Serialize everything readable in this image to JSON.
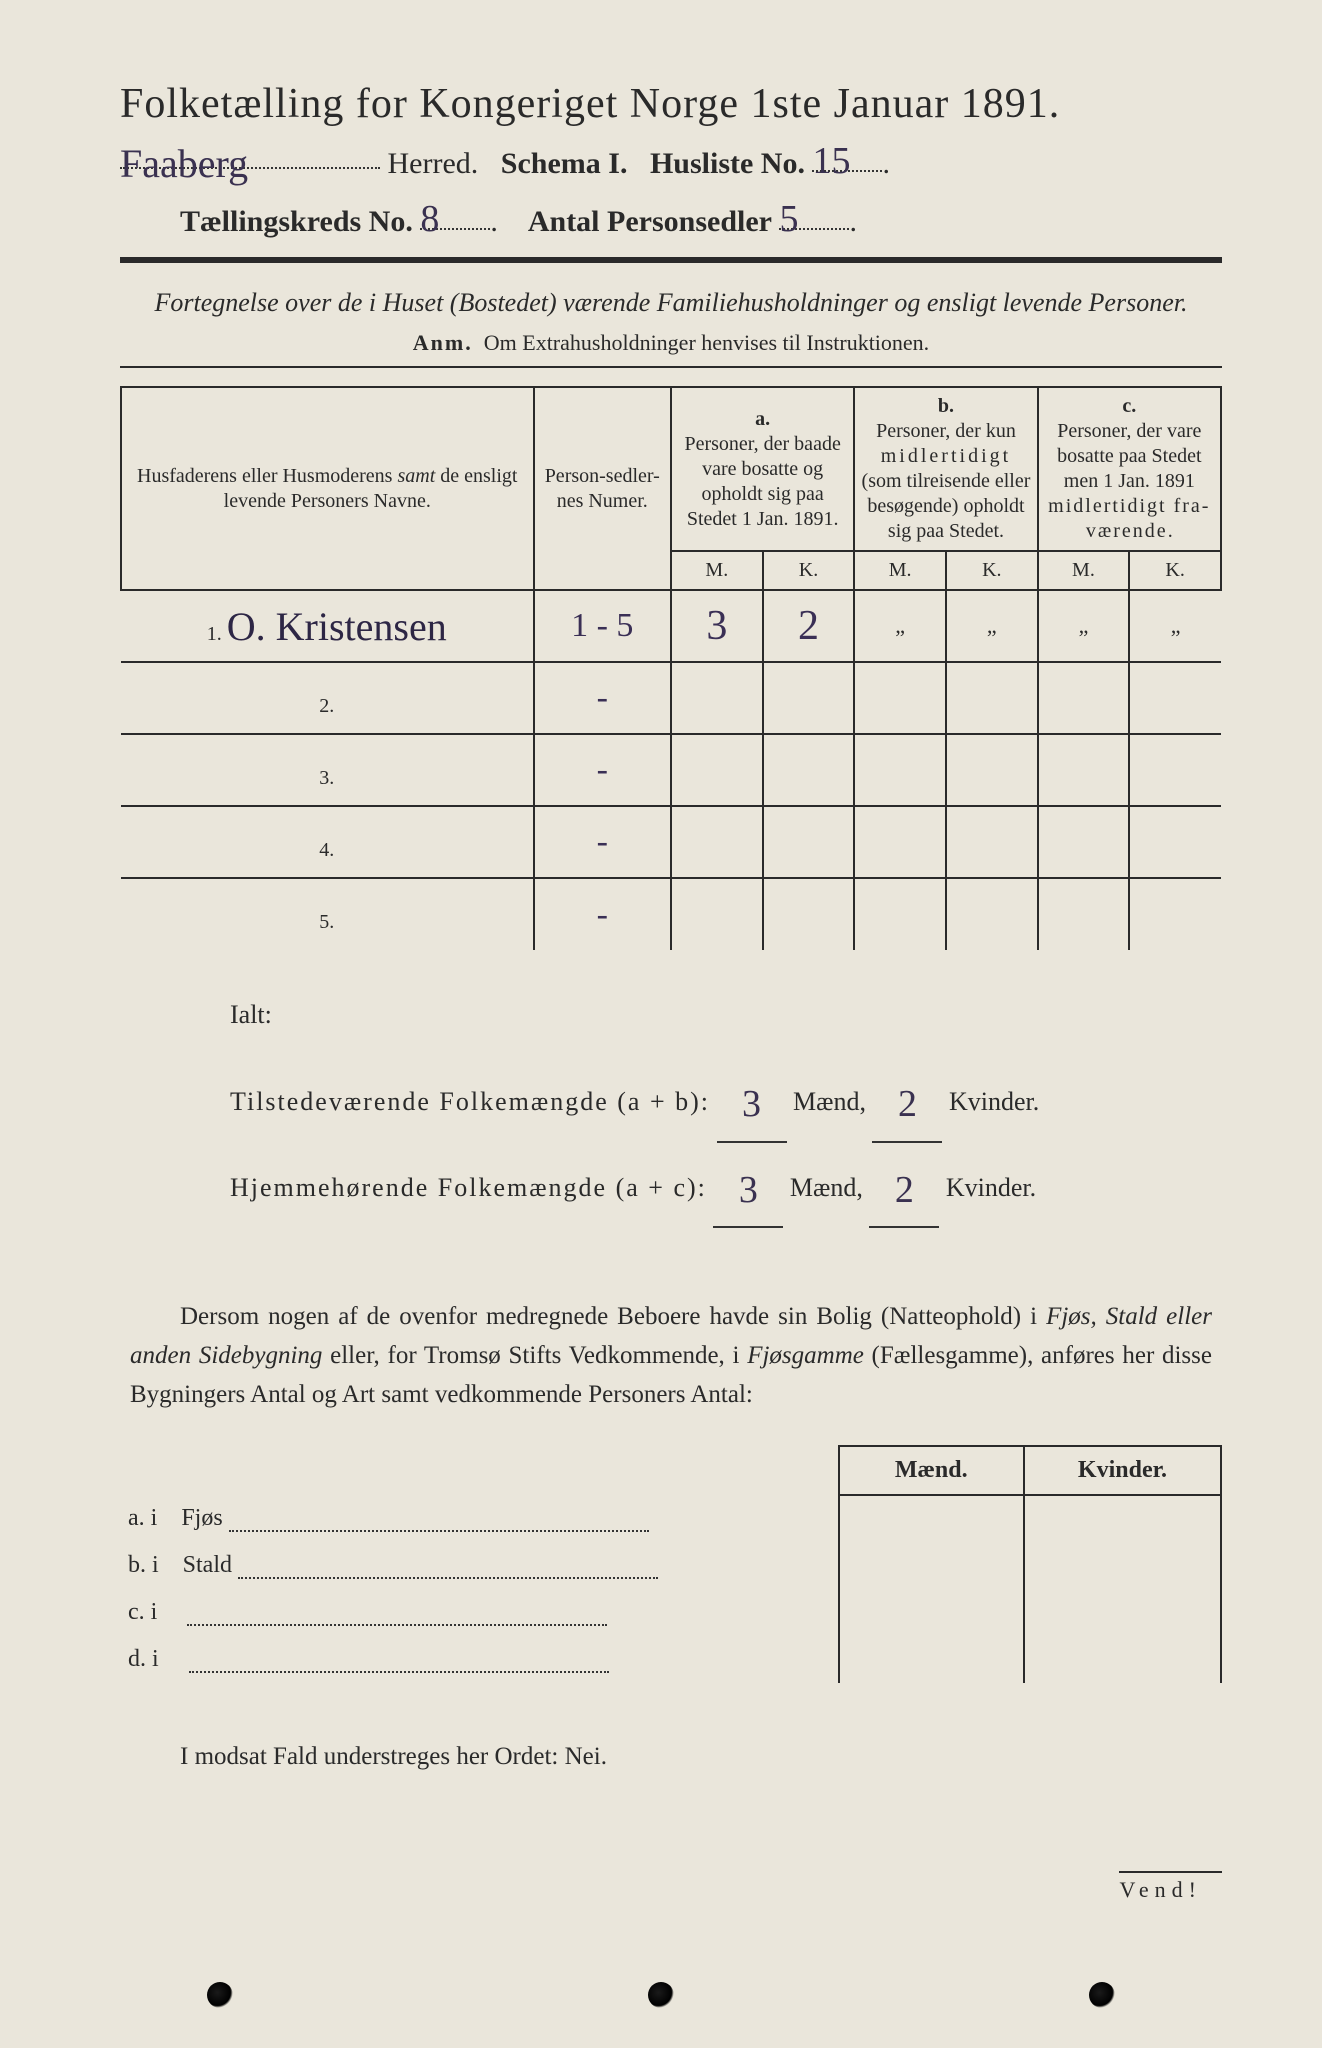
{
  "colors": {
    "paper": "#eae6db",
    "ink": "#2a2a2a",
    "handwriting": "#3a2f55"
  },
  "header": {
    "title": "Folketælling for Kongeriget Norge 1ste Januar 1891.",
    "herred_hw": "Faaberg",
    "herred_label": "Herred.",
    "schema_label": "Schema I.",
    "husliste_label": "Husliste No.",
    "husliste_no_hw": "15",
    "kreds_label": "Tællingskreds No.",
    "kreds_no_hw": "8",
    "antal_label": "Antal Personsedler",
    "antal_hw": "5"
  },
  "subtitle": {
    "line1": "Fortegnelse over de i Huset (Bostedet) værende Familiehusholdninger og ensligt levende Personer.",
    "anm_label": "Anm.",
    "anm_text": "Om Extrahusholdninger henvises til Instruktionen."
  },
  "table": {
    "columns": {
      "names": "Husfaderens eller Husmoderens samt de ensligt levende Personers Navne.",
      "numer": "Person-sedler-nes Numer.",
      "a_label": "a.",
      "a_text": "Personer, der baade vare bosatte og opholdt sig paa Stedet 1 Jan. 1891.",
      "b_label": "b.",
      "b_text": "Personer, der kun midlertidigt (som tilreisende eller besøgende) opholdt sig paa Stedet.",
      "c_label": "c.",
      "c_text": "Personer, der vare bosatte paa Stedet men 1 Jan. 1891 midlertidigt fraværende.",
      "m": "M.",
      "k": "K."
    },
    "rows": [
      {
        "n": "1.",
        "name_hw": "O. Kristensen",
        "numer_hw": "1 - 5",
        "a_m": "3",
        "a_k": "2",
        "b_m": "„",
        "b_k": "„",
        "c_m": "„",
        "c_k": "„"
      },
      {
        "n": "2.",
        "name_hw": "",
        "numer_hw": "-",
        "a_m": "",
        "a_k": "",
        "b_m": "",
        "b_k": "",
        "c_m": "",
        "c_k": ""
      },
      {
        "n": "3.",
        "name_hw": "",
        "numer_hw": "-",
        "a_m": "",
        "a_k": "",
        "b_m": "",
        "b_k": "",
        "c_m": "",
        "c_k": ""
      },
      {
        "n": "4.",
        "name_hw": "",
        "numer_hw": "-",
        "a_m": "",
        "a_k": "",
        "b_m": "",
        "b_k": "",
        "c_m": "",
        "c_k": ""
      },
      {
        "n": "5.",
        "name_hw": "",
        "numer_hw": "-",
        "a_m": "",
        "a_k": "",
        "b_m": "",
        "b_k": "",
        "c_m": "",
        "c_k": ""
      }
    ]
  },
  "totals": {
    "ialt": "Ialt:",
    "tilstede_label": "Tilstedeværende Folkemængde (a + b):",
    "hjemme_label": "Hjemmehørende Folkemængde (a + c):",
    "maend": "Mænd,",
    "kvinder": "Kvinder.",
    "tilstede_m": "3",
    "tilstede_k": "2",
    "hjemme_m": "3",
    "hjemme_k": "2"
  },
  "paragraph": "Dersom nogen af de ovenfor medregnede Beboere havde sin Bolig (Natteophold) i Fjøs, Stald eller anden Sidebygning eller, for Tromsø Stifts Vedkommende, i Fjøsgamme (Fællesgamme), anføres her disse Bygningers Antal og Art samt vedkommende Personers Antal:",
  "sideTable": {
    "maend": "Mænd.",
    "kvinder": "Kvinder.",
    "rows": [
      {
        "label": "a.  i",
        "text": "Fjøs"
      },
      {
        "label": "b.  i",
        "text": "Stald"
      },
      {
        "label": "c.  i",
        "text": ""
      },
      {
        "label": "d.  i",
        "text": ""
      }
    ]
  },
  "neiLine": "I modsat Fald understreges her Ordet: Nei.",
  "vend": "Vend!"
}
